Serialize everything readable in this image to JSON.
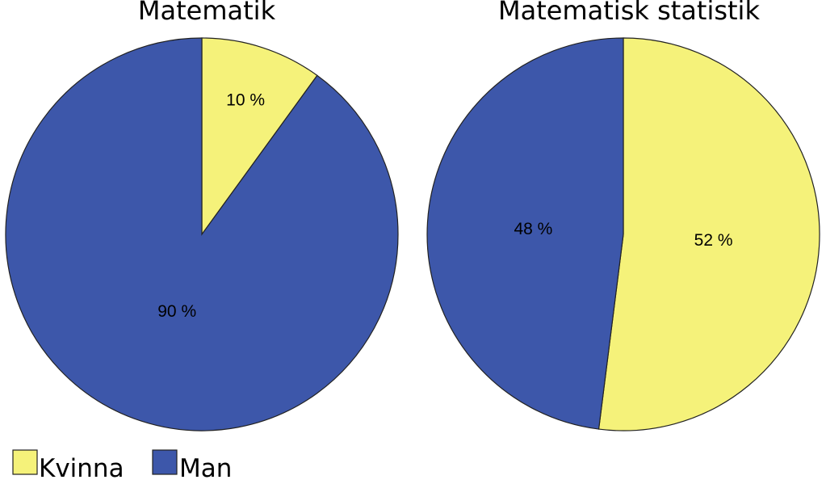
{
  "chart_data": [
    {
      "type": "pie",
      "title": "Matematik",
      "slices": [
        {
          "label": "Kvinna",
          "value": 10,
          "value_label": "10 %",
          "color": "#f5f27a"
        },
        {
          "label": "Man",
          "value": 90,
          "value_label": "90 %",
          "color": "#3d57aa"
        }
      ]
    },
    {
      "type": "pie",
      "title": "Matematisk statistik",
      "slices": [
        {
          "label": "Kvinna",
          "value": 52,
          "value_label": "52 %",
          "color": "#f5f27a"
        },
        {
          "label": "Man",
          "value": 48,
          "value_label": "48 %",
          "color": "#3d57aa"
        }
      ]
    }
  ],
  "legend": {
    "placement": "bottom-left",
    "items": [
      {
        "label": "Kvinna",
        "color": "#f5f27a"
      },
      {
        "label": "Man",
        "color": "#3d57aa"
      }
    ]
  }
}
